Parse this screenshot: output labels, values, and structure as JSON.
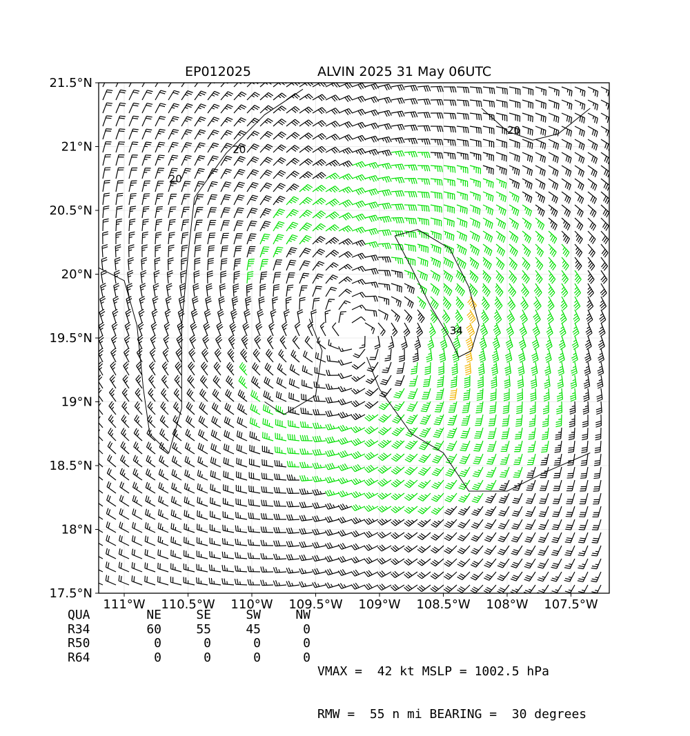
{
  "title": {
    "left": "EP012025",
    "right": "ALVIN 2025 31 May 06UTC"
  },
  "chart_data": {
    "type": "wind-barb-map",
    "storm_id": "EP012025",
    "storm_name": "ALVIN",
    "xlim": [
      -111.2,
      -107.2
    ],
    "ylim": [
      17.5,
      21.5
    ],
    "x_ticks": [
      {
        "value": -111.0,
        "label": "111°W"
      },
      {
        "value": -110.5,
        "label": "110.5°W"
      },
      {
        "value": -110.0,
        "label": "110°W"
      },
      {
        "value": -109.5,
        "label": "109.5°W"
      },
      {
        "value": -109.0,
        "label": "109°W"
      },
      {
        "value": -108.5,
        "label": "108.5°W"
      },
      {
        "value": -108.0,
        "label": "108°W"
      },
      {
        "value": -107.5,
        "label": "107.5°W"
      }
    ],
    "y_ticks": [
      {
        "value": 17.5,
        "label": "17.5°N"
      },
      {
        "value": 18.0,
        "label": "18°N"
      },
      {
        "value": 18.5,
        "label": "18.5°N"
      },
      {
        "value": 19.0,
        "label": "19°N"
      },
      {
        "value": 19.5,
        "label": "19.5°N"
      },
      {
        "value": 20.0,
        "label": "20°N"
      },
      {
        "value": 20.5,
        "label": "20.5°N"
      },
      {
        "value": 21.0,
        "label": "21°N"
      },
      {
        "value": 21.5,
        "label": "21.5°N"
      }
    ],
    "grid": true,
    "center": {
      "lon": -109.2,
      "lat": 19.55
    },
    "vmax_kt": 42,
    "rmw_nmi": 55,
    "colors": {
      "below34": "#000000",
      "gale": "#00e000",
      "storm": "#f0b400"
    },
    "contours": [
      {
        "label": "20",
        "label_lon": -110.15,
        "label_lat": 20.95
      },
      {
        "label": "20",
        "label_lon": -110.65,
        "label_lat": 20.72
      },
      {
        "label": "20",
        "label_lon": -108.0,
        "label_lat": 21.1
      },
      {
        "label": "34",
        "label_lon": -108.45,
        "label_lat": 19.53
      }
    ]
  },
  "table": {
    "header": [
      "QUA",
      "NE",
      "SE",
      "SW",
      "NW"
    ],
    "rows": [
      {
        "label": "R34",
        "values": [
          "60",
          "55",
          "45",
          "0"
        ]
      },
      {
        "label": "R50",
        "values": [
          "0",
          "0",
          "0",
          "0"
        ]
      },
      {
        "label": "R64",
        "values": [
          "0",
          "0",
          "0",
          "0"
        ]
      }
    ]
  },
  "stats": {
    "line1": "VMAX =  42 kt MSLP = 1002.5 hPa",
    "line2": "RMW =  55 n mi BEARING =  30 degrees"
  }
}
